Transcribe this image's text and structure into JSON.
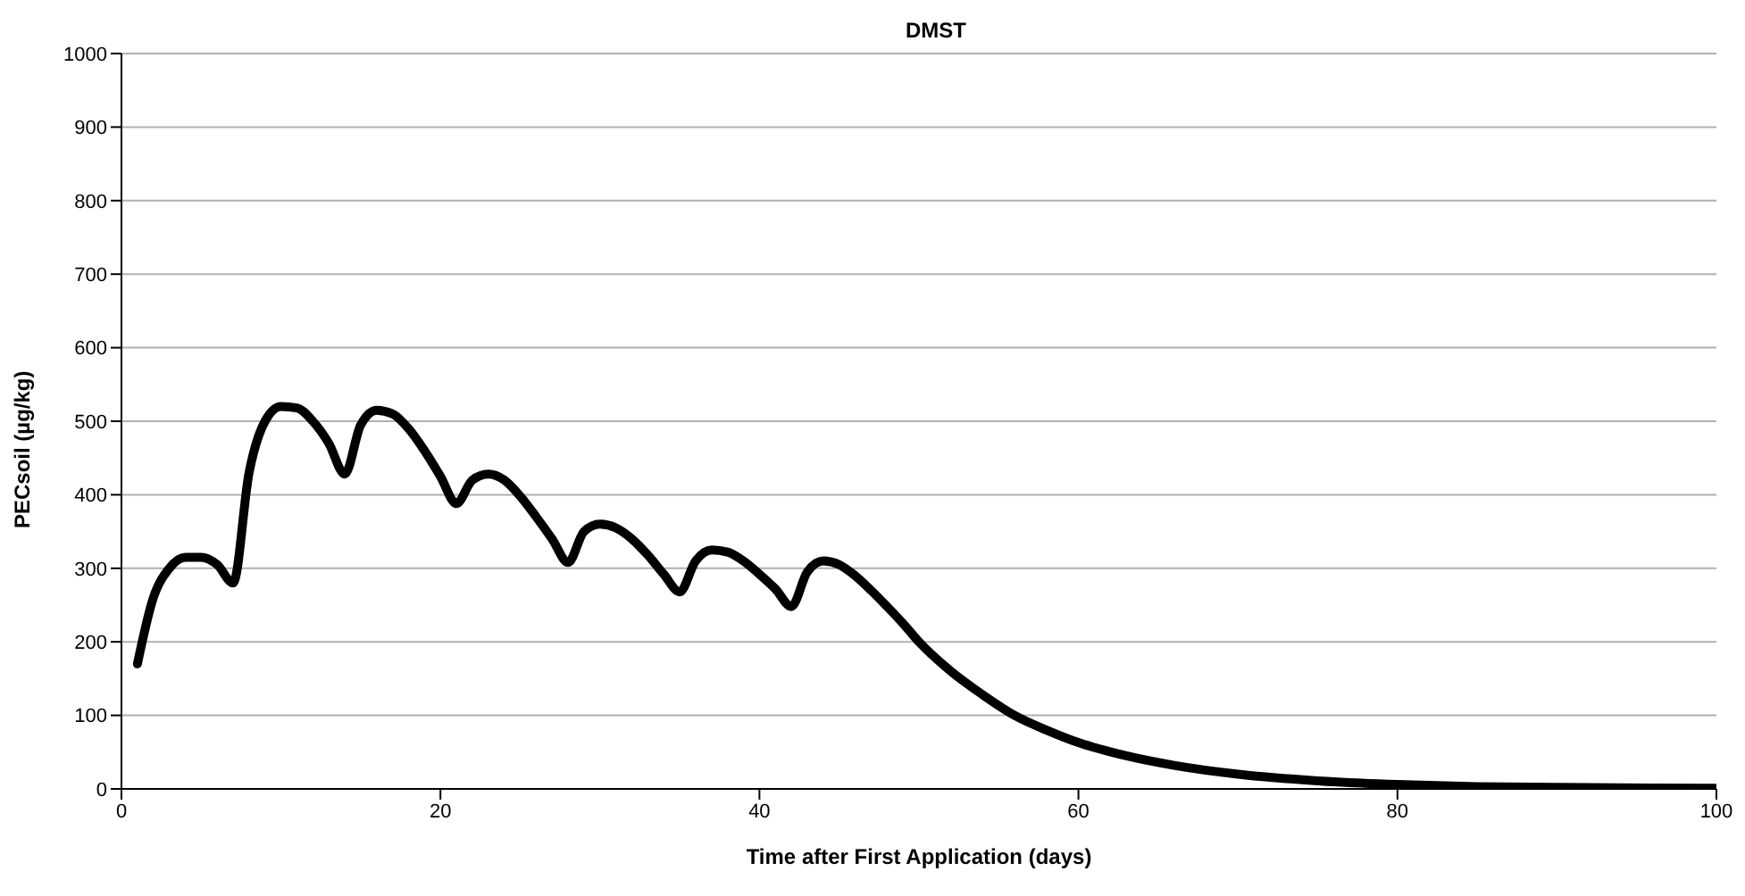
{
  "chart_data": {
    "type": "line",
    "title": "DMST",
    "xlabel": "Time after First Application (days)",
    "ylabel": "PECsoil (µg/kg)",
    "x": [
      1,
      2,
      3,
      4,
      5,
      6,
      7,
      8,
      9,
      10,
      11,
      12,
      13,
      14,
      15,
      16,
      17,
      18,
      19,
      20,
      21,
      22,
      23,
      24,
      25,
      26,
      27,
      28,
      29,
      30,
      31,
      32,
      33,
      34,
      35,
      36,
      37,
      38,
      39,
      40,
      41,
      42,
      43,
      44,
      45,
      46,
      47,
      48,
      49,
      50,
      52,
      54,
      56,
      58,
      60,
      63,
      66,
      70,
      75,
      80,
      85,
      90,
      100
    ],
    "series": [
      {
        "color": "#000000",
        "values": [
          170,
          260,
          300,
          315,
          315,
          305,
          280,
          430,
          500,
          520,
          518,
          500,
          470,
          428,
          495,
          515,
          510,
          490,
          460,
          425,
          388,
          420,
          428,
          420,
          398,
          370,
          340,
          308,
          350,
          360,
          355,
          340,
          318,
          292,
          268,
          310,
          325,
          322,
          310,
          292,
          272,
          248,
          295,
          310,
          305,
          290,
          270,
          248,
          225,
          200,
          160,
          128,
          100,
          80,
          63,
          45,
          32,
          20,
          11,
          6,
          3,
          2,
          1
        ]
      }
    ],
    "xlim": [
      0,
      100
    ],
    "xticks": [
      0,
      20,
      40,
      60,
      80,
      100
    ],
    "ylim": [
      0,
      1000
    ],
    "yticks": [
      0,
      100,
      200,
      300,
      400,
      500,
      600,
      700,
      800,
      900,
      1000
    ],
    "grid": "y",
    "legend": false,
    "marker": "none",
    "line_style": "solid"
  }
}
